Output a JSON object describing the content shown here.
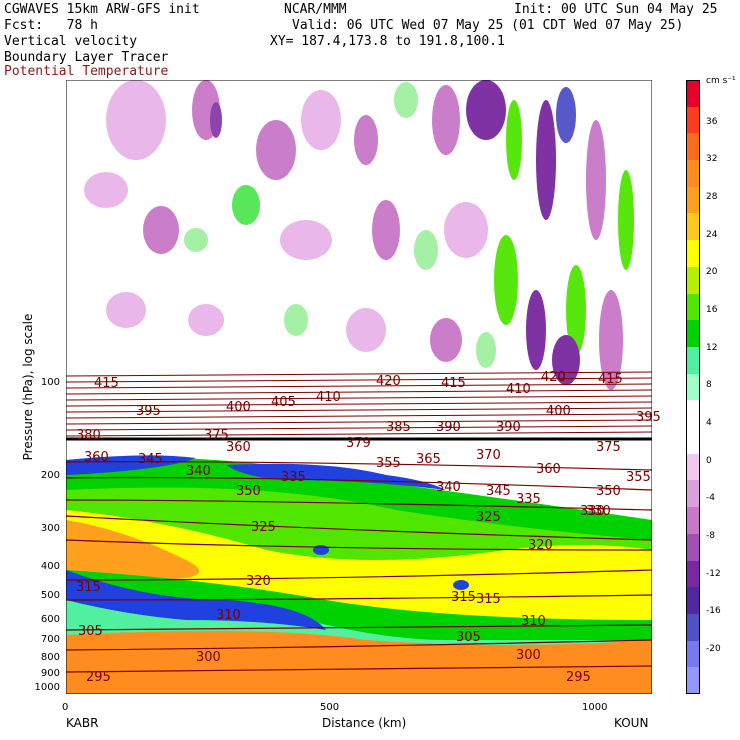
{
  "header": {
    "line1_left": "CGWAVES 15km ARW-GFS init",
    "line1_mid": "NCAR/MMM",
    "line1_right": "Init: 00 UTC Sun 04 May 25",
    "line2_left": "Fcst:   78 h",
    "line2_right": "Valid: 06 UTC Wed 07 May 25 (01 CDT Wed 07 May 25)",
    "line3_left": "Vertical velocity",
    "line3_right": "XY= 187.4,173.8 to 191.8,100.1",
    "line4_left": "Boundary Layer Tracer",
    "line5_left": "Potential Temperature",
    "line5_color": "#8b1a1a"
  },
  "axes": {
    "ylabel": "Pressure (hPa), log scale",
    "xlabel": "Distance (km)",
    "pressure_ticks": [
      "100",
      "200",
      "300",
      "400",
      "500",
      "600",
      "700",
      "800",
      "900",
      "1000"
    ],
    "x_ticks": [
      "0",
      "500",
      "1000"
    ],
    "left_station": "KABR",
    "right_station": "KOUN"
  },
  "colorbar": {
    "unit": "cm s⁻¹",
    "labels": [
      "36",
      "32",
      "28",
      "24",
      "20",
      "16",
      "12",
      "8",
      "4",
      "0",
      "-4",
      "-8",
      "-12",
      "-16",
      "-20"
    ],
    "colors": [
      "#e8002a",
      "#ff3c1e",
      "#ff6a1e",
      "#ff8c1e",
      "#ffa01e",
      "#ffc81e",
      "#ffff00",
      "#b4f000",
      "#50e600",
      "#00d200",
      "#50f0a0",
      "#a0ffc8",
      "#ffffff",
      "#ffffff",
      "#f0c8f0",
      "#dca0dc",
      "#c878c8",
      "#a050b4",
      "#7828a0",
      "#5028a0",
      "#5050c8",
      "#7878f0",
      "#9696ff"
    ]
  },
  "theta_labels": [
    "415",
    "420",
    "415",
    "410",
    "420",
    "415",
    "395",
    "400",
    "405",
    "410",
    "385",
    "390",
    "390",
    "400",
    "395",
    "380",
    "375",
    "379",
    "360",
    "365",
    "370",
    "375",
    "360",
    "345",
    "340",
    "335",
    "350",
    "355",
    "360",
    "350",
    "355",
    "330",
    "345",
    "340",
    "335",
    "325",
    "320",
    "330",
    "325",
    "320",
    "315",
    "315",
    "315",
    "310",
    "310",
    "305",
    "305",
    "300",
    "300",
    "295",
    "295"
  ],
  "theta_color": "#7a0000"
}
